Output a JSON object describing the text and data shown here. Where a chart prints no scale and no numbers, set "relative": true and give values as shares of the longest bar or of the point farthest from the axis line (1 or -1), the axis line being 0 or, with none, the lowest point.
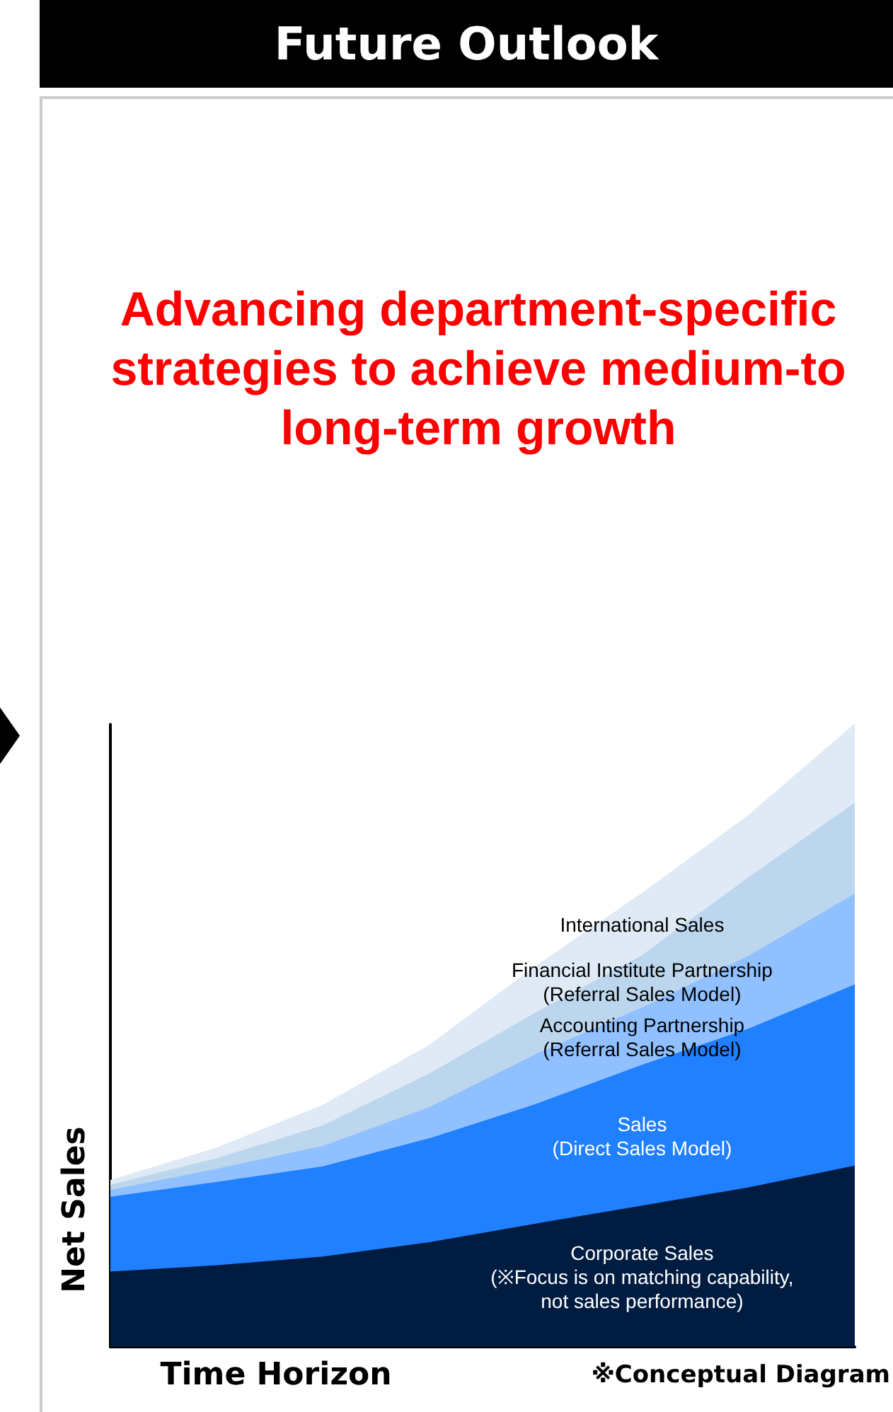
{
  "chart_data": {
    "type": "area",
    "stacked": true,
    "relative": true,
    "title": "Future Outlook",
    "subtitle": "Advancing department-specific strategies to achieve medium-to long-term growth",
    "xlabel": "Time Horizon",
    "ylabel": "Net Sales",
    "annotations": [
      "※Conceptual Diagram"
    ],
    "legend": false,
    "grid": false,
    "marker": "none",
    "categories": [
      null,
      null,
      null,
      null,
      null,
      null,
      null,
      null
    ],
    "series": [
      {
        "name": "Corporate Sales\n(※Focus is on matching capability,\nnot sales performance)",
        "color": "#001c40",
        "values": [
          0.12,
          0.13,
          0.144,
          0.167,
          0.197,
          0.226,
          0.255,
          0.29
        ]
      },
      {
        "name": "Sales\n(Direct Sales Model)",
        "color": "#2080ff",
        "values": [
          0.12,
          0.134,
          0.145,
          0.167,
          0.192,
          0.226,
          0.255,
          0.291
        ]
      },
      {
        "name": "Accounting Partnership\n(Referral Sales Model)",
        "color": "#90c0ff",
        "values": [
          0.011,
          0.021,
          0.033,
          0.05,
          0.08,
          0.092,
          0.117,
          0.146
        ]
      },
      {
        "name": "Financial Institute Partnership\n(Referral Sales Model)",
        "color": "#bcd6ee",
        "values": [
          0.008,
          0.017,
          0.033,
          0.054,
          0.067,
          0.084,
          0.126,
          0.146
        ]
      },
      {
        "name": "International Sales",
        "color": "#dfeaf6",
        "values": [
          0.008,
          0.017,
          0.033,
          0.046,
          0.075,
          0.1,
          0.1,
          0.127
        ]
      }
    ]
  }
}
